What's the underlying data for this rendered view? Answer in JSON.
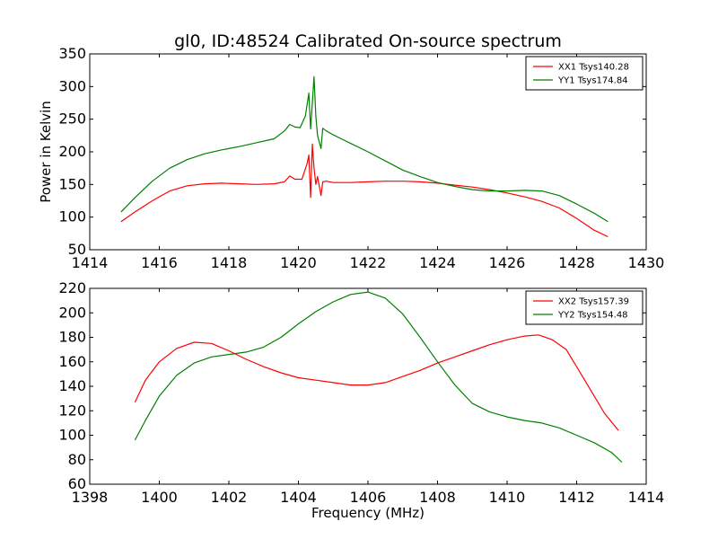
{
  "chart_data": [
    {
      "type": "line",
      "title": "gl0, ID:48524 Calibrated On-source spectrum",
      "xlabel": "",
      "ylabel": "Power in Kelvin",
      "xlim": [
        1414,
        1430
      ],
      "ylim": [
        50,
        350
      ],
      "xticks": [
        1414,
        1416,
        1418,
        1420,
        1422,
        1424,
        1426,
        1428,
        1430
      ],
      "yticks": [
        50,
        100,
        150,
        200,
        250,
        300,
        350
      ],
      "legend_position": "top-right",
      "series": [
        {
          "name": "XX1 Tsys140.28",
          "color": "#ff0000",
          "x": [
            1414.9,
            1415.3,
            1415.8,
            1416.3,
            1416.8,
            1417.3,
            1417.8,
            1418.3,
            1418.8,
            1419.3,
            1419.6,
            1419.75,
            1419.9,
            1420.1,
            1420.25,
            1420.3,
            1420.35,
            1420.4,
            1420.45,
            1420.5,
            1420.55,
            1420.65,
            1420.7,
            1420.8,
            1421.0,
            1421.5,
            1422.0,
            1422.5,
            1423.0,
            1423.5,
            1424.0,
            1424.5,
            1425.0,
            1425.5,
            1426.0,
            1426.5,
            1427.0,
            1427.5,
            1428.0,
            1428.5,
            1428.9
          ],
          "y": [
            93,
            108,
            125,
            140,
            148,
            151,
            152,
            151,
            150,
            151,
            154,
            163,
            158,
            158,
            182,
            195,
            130,
            212,
            175,
            150,
            162,
            133,
            154,
            155,
            153,
            153,
            154,
            155,
            155,
            154,
            152,
            149,
            146,
            142,
            137,
            131,
            124,
            114,
            98,
            80,
            70
          ]
        },
        {
          "name": "YY1 Tsys174.84",
          "color": "#008000",
          "x": [
            1414.9,
            1415.3,
            1415.8,
            1416.3,
            1416.8,
            1417.3,
            1417.8,
            1418.3,
            1418.8,
            1419.3,
            1419.6,
            1419.75,
            1419.9,
            1420.05,
            1420.2,
            1420.3,
            1420.35,
            1420.45,
            1420.5,
            1420.55,
            1420.65,
            1420.7,
            1420.8,
            1421.0,
            1421.5,
            1422.0,
            1422.5,
            1423.0,
            1423.5,
            1424.0,
            1424.5,
            1425.0,
            1425.5,
            1426.0,
            1426.5,
            1427.0,
            1427.5,
            1428.0,
            1428.5,
            1428.9
          ],
          "y": [
            108,
            130,
            155,
            175,
            188,
            197,
            203,
            208,
            214,
            220,
            232,
            242,
            238,
            237,
            255,
            290,
            235,
            315,
            255,
            225,
            205,
            236,
            232,
            226,
            213,
            200,
            186,
            172,
            162,
            153,
            147,
            142,
            140,
            140,
            141,
            140,
            133,
            120,
            106,
            93
          ]
        }
      ]
    },
    {
      "type": "line",
      "title": "",
      "xlabel": "Frequency (MHz)",
      "ylabel": "",
      "xlim": [
        1398,
        1414
      ],
      "ylim": [
        60,
        220
      ],
      "xticks": [
        1398,
        1400,
        1402,
        1404,
        1406,
        1408,
        1410,
        1412,
        1414
      ],
      "yticks": [
        60,
        80,
        100,
        120,
        140,
        160,
        180,
        200,
        220
      ],
      "legend_position": "top-right",
      "series": [
        {
          "name": "XX2 Tsys157.39",
          "color": "#ff0000",
          "x": [
            1399.3,
            1399.6,
            1400.0,
            1400.5,
            1401.0,
            1401.5,
            1402.0,
            1402.5,
            1403.0,
            1403.5,
            1404.0,
            1404.5,
            1405.0,
            1405.5,
            1406.0,
            1406.5,
            1407.0,
            1407.5,
            1408.0,
            1408.5,
            1409.0,
            1409.5,
            1410.0,
            1410.5,
            1410.9,
            1411.3,
            1411.7,
            1412.0,
            1412.4,
            1412.8,
            1413.2
          ],
          "y": [
            127,
            145,
            160,
            171,
            176,
            175,
            169,
            162,
            156,
            151,
            147,
            145,
            143,
            141,
            141,
            143,
            148,
            153,
            159,
            164,
            169,
            174,
            178,
            181,
            182,
            178,
            170,
            156,
            137,
            118,
            104
          ]
        },
        {
          "name": "YY2 Tsys154.48",
          "color": "#008000",
          "x": [
            1399.3,
            1399.6,
            1400.0,
            1400.5,
            1401.0,
            1401.5,
            1402.0,
            1402.5,
            1403.0,
            1403.5,
            1404.0,
            1404.5,
            1405.0,
            1405.5,
            1406.0,
            1406.5,
            1407.0,
            1407.5,
            1408.0,
            1408.5,
            1409.0,
            1409.5,
            1410.0,
            1410.5,
            1411.0,
            1411.5,
            1412.0,
            1412.5,
            1413.0,
            1413.3
          ],
          "y": [
            96,
            112,
            132,
            149,
            159,
            164,
            166,
            168,
            172,
            180,
            191,
            201,
            209,
            215,
            217,
            212,
            199,
            180,
            160,
            141,
            126,
            119,
            115,
            112,
            110,
            106,
            100,
            94,
            86,
            78
          ]
        }
      ]
    }
  ]
}
